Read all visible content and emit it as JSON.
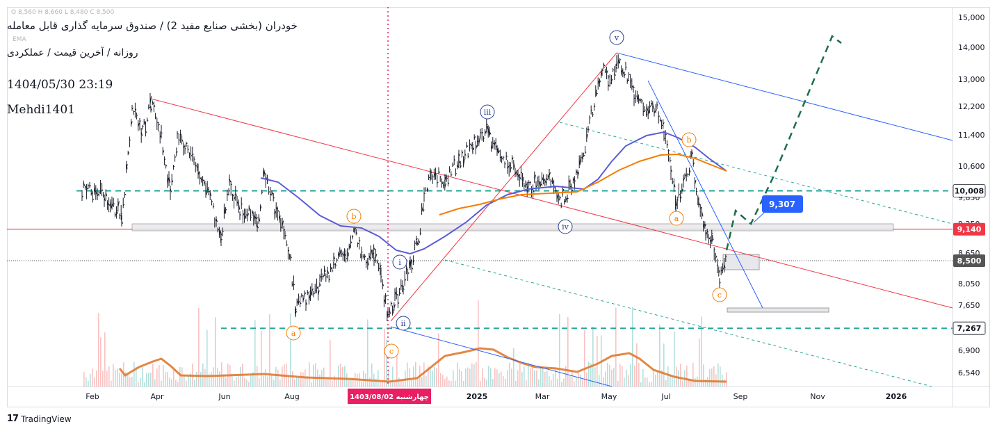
{
  "header": {
    "title": "خودران (بخشی صنایع مفید 2) / صندوق سرمایه گذاری قابل معامله",
    "subtitle": "روزانه / آخرین قیمت / عملکردی",
    "datetime": "1404/05/30 23:19",
    "author": "Mehdi1401",
    "ohlc": "O 8,560  H 8,660  L 8,480  C 8,500",
    "ema_label": "EMA"
  },
  "brand": {
    "name": "TradingView",
    "logo": "17"
  },
  "chart_data": {
    "type": "line",
    "title": "خودران (بخشی صنایع مفید 2) / صندوق سرمایه گذاری قابل معامله",
    "y_ticks": [
      "15,000",
      "14,000",
      "13,000",
      "12,200",
      "11,400",
      "10,600",
      "9,850",
      "9,250",
      "8,650",
      "8,050",
      "7,650",
      "6,900",
      "6,540"
    ],
    "y_tick_values": [
      15000,
      14000,
      13000,
      12200,
      11400,
      10600,
      9850,
      9250,
      8650,
      8050,
      7650,
      6900,
      6540
    ],
    "x_ticks": [
      "Feb",
      "Apr",
      "Jun",
      "Aug",
      "1403/08/02 چهارشنبه",
      "2025",
      "Mar",
      "May",
      "Jul",
      "Sep",
      "Nov",
      "2026"
    ],
    "x_tick_dates": [
      1,
      3,
      5,
      7,
      "marker",
      12,
      14,
      16,
      18,
      20,
      22,
      24
    ],
    "price_labels": [
      {
        "value": "10,008",
        "color": "#ffffff",
        "bg": "#ffffff",
        "fg": "#131722"
      },
      {
        "value": "9,140",
        "bg": "#f23645",
        "fg": "#ffffff"
      },
      {
        "value": "8,500",
        "bg": "#555555",
        "fg": "#ffffff"
      },
      {
        "value": "7,267",
        "bg": "#ffffff",
        "fg": "#131722"
      }
    ],
    "target_label": "9,307",
    "horizontal_levels": [
      10008,
      9140,
      8500,
      7267
    ],
    "wave_labels": {
      "blue": [
        "i",
        "ii",
        "iii",
        "iv",
        "v"
      ],
      "orange": [
        "a",
        "b",
        "c",
        "a",
        "b",
        "c"
      ]
    },
    "colors": {
      "accent_teal": "#26a69a",
      "red_line": "#f23645",
      "blue_line": "#2962ff",
      "orange_ma": "#f57c00",
      "purple_ma": "#5b5bd6",
      "dashed_green": "#1b6e4a",
      "target_blue": "#2962ff"
    }
  }
}
